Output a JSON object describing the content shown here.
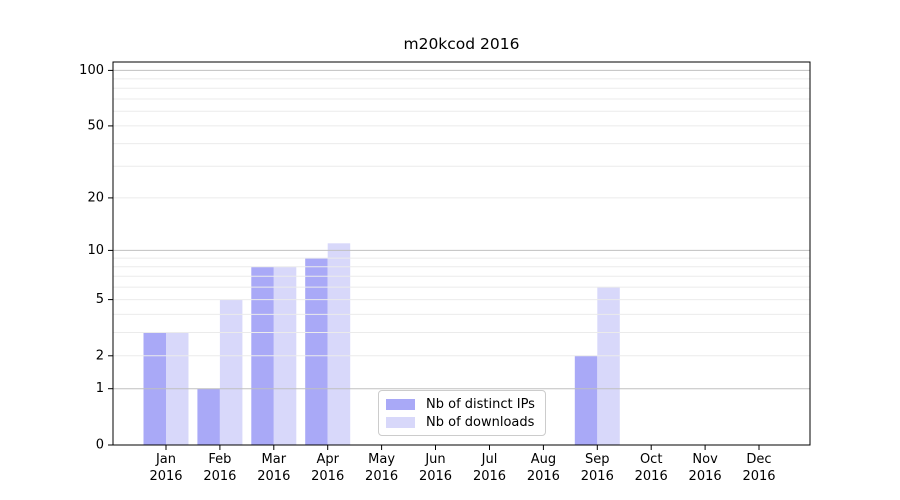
{
  "chart_data": {
    "type": "bar",
    "title": "m20kcod 2016",
    "categories": [
      "Jan",
      "Feb",
      "Mar",
      "Apr",
      "May",
      "Jun",
      "Jul",
      "Aug",
      "Sep",
      "Oct",
      "Nov",
      "Dec"
    ],
    "year": "2016",
    "series": [
      {
        "name": "Nb of distinct IPs",
        "color": "#a9a9f7",
        "values": [
          3,
          1,
          8,
          9,
          0,
          0,
          0,
          0,
          2,
          0,
          0,
          0
        ]
      },
      {
        "name": "Nb of downloads",
        "color": "#d8d8fa",
        "values": [
          3,
          5,
          8,
          11,
          0,
          0,
          0,
          0,
          6,
          0,
          0,
          0
        ]
      }
    ],
    "yscale": "log1p",
    "ylim": [
      0,
      110
    ],
    "ytick_labels": [
      "0",
      "1",
      "2",
      "5",
      "10",
      "20",
      "50",
      "100"
    ],
    "ytick_values": [
      0,
      1,
      2,
      5,
      10,
      20,
      50,
      100
    ],
    "grid_major": [
      1,
      10,
      100
    ],
    "grid_minor": [
      2,
      3,
      4,
      5,
      6,
      7,
      8,
      9,
      20,
      30,
      40,
      50,
      60,
      70,
      80,
      90
    ],
    "grid_on": true,
    "legend_position": "lower-center",
    "colors": {
      "grid_major": "#c0c0c0",
      "grid_minor": "#ebebeb",
      "spine": "#000000",
      "tick_text": "#000000",
      "background": "#ffffff"
    }
  }
}
